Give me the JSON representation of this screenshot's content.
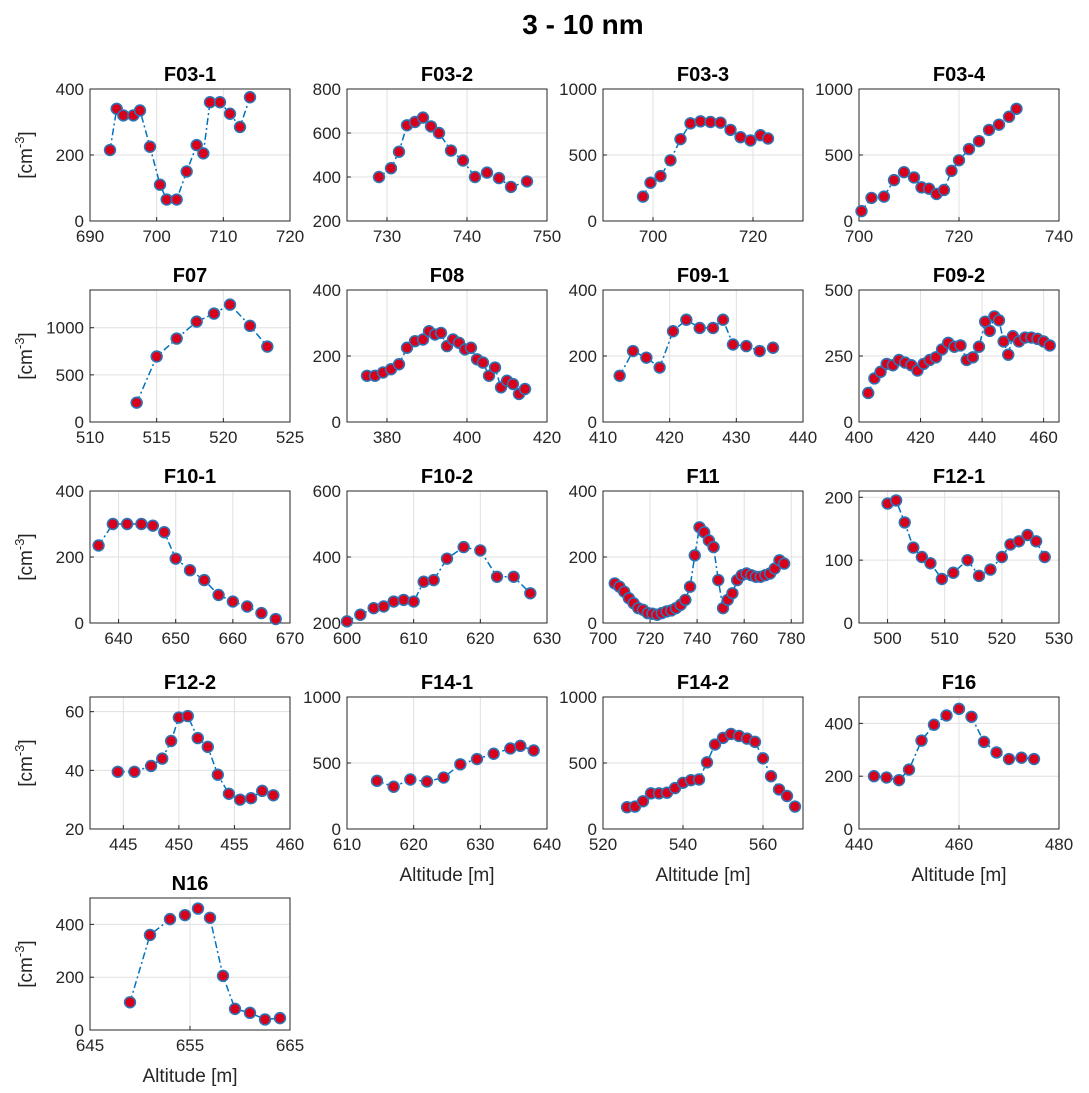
{
  "figure": {
    "title": "3 - 10 nm",
    "colors": {
      "line": "#0072BD",
      "marker_fill": "#D9001B",
      "marker_edge": "#2E74B5",
      "grid": "#E0E0E0",
      "axes": "#262626"
    }
  },
  "chart_data": [
    {
      "type": "line",
      "title": "F03-1",
      "xlabel": "",
      "ylabel": "[cm^-3]",
      "xlim": [
        690,
        720
      ],
      "ylim": [
        0,
        400
      ],
      "xticks": [
        690,
        700,
        710,
        720
      ],
      "yticks": [
        0,
        200,
        400
      ],
      "grid": true,
      "series": [
        {
          "x": [
            693,
            694,
            695,
            696.5,
            697.5,
            699,
            700.5,
            701.5,
            703,
            704.5,
            706,
            707,
            708,
            709.5,
            711,
            712.5,
            714
          ],
          "y": [
            215,
            340,
            320,
            320,
            335,
            225,
            110,
            65,
            65,
            150,
            230,
            205,
            360,
            360,
            325,
            285,
            375
          ]
        }
      ]
    },
    {
      "type": "line",
      "title": "F03-2",
      "xlabel": "",
      "ylabel": "",
      "xlim": [
        725,
        750
      ],
      "ylim": [
        200,
        800
      ],
      "xticks": [
        730,
        740,
        750
      ],
      "yticks": [
        200,
        400,
        600,
        800
      ],
      "grid": true,
      "series": [
        {
          "x": [
            729,
            730.5,
            731.5,
            732.5,
            733.5,
            734.5,
            735.5,
            736.5,
            738,
            739.5,
            741,
            742.5,
            744,
            745.5,
            747.5
          ],
          "y": [
            400,
            440,
            515,
            635,
            650,
            670,
            630,
            600,
            520,
            475,
            400,
            420,
            395,
            355,
            380
          ]
        }
      ]
    },
    {
      "type": "line",
      "title": "F03-3",
      "xlabel": "",
      "ylabel": "",
      "xlim": [
        690,
        730
      ],
      "ylim": [
        0,
        1000
      ],
      "xticks": [
        700,
        720
      ],
      "yticks": [
        0,
        500,
        1000
      ],
      "grid": true,
      "series": [
        {
          "x": [
            698,
            699.5,
            701.5,
            703.5,
            705.5,
            707.5,
            709.5,
            711.5,
            713.5,
            715.5,
            717.5,
            719.5,
            721.5,
            723
          ],
          "y": [
            185,
            290,
            340,
            460,
            620,
            740,
            755,
            750,
            745,
            690,
            635,
            610,
            650,
            625
          ]
        }
      ]
    },
    {
      "type": "line",
      "title": "F03-4",
      "xlabel": "",
      "ylabel": "",
      "xlim": [
        700,
        740
      ],
      "ylim": [
        0,
        1000
      ],
      "xticks": [
        700,
        720,
        740
      ],
      "yticks": [
        0,
        500,
        1000
      ],
      "grid": true,
      "series": [
        {
          "x": [
            700.5,
            702.5,
            705,
            707,
            709,
            711,
            712.5,
            714,
            715.5,
            717,
            718.5,
            720,
            722,
            724,
            726,
            728,
            730,
            731.5
          ],
          "y": [
            75,
            175,
            185,
            310,
            370,
            330,
            255,
            245,
            205,
            235,
            380,
            460,
            545,
            605,
            690,
            730,
            790,
            850
          ]
        }
      ]
    },
    {
      "type": "line",
      "title": "F07",
      "xlabel": "",
      "ylabel": "[cm^-3]",
      "xlim": [
        510,
        525
      ],
      "ylim": [
        0,
        1400
      ],
      "xticks": [
        510,
        515,
        520,
        525
      ],
      "yticks": [
        0,
        500,
        1000
      ],
      "grid": true,
      "series": [
        {
          "x": [
            513.5,
            515,
            516.5,
            518,
            519.3,
            520.5,
            522,
            523.3
          ],
          "y": [
            205,
            695,
            885,
            1065,
            1150,
            1245,
            1020,
            800
          ]
        }
      ]
    },
    {
      "type": "line",
      "title": "F08",
      "xlabel": "",
      "ylabel": "",
      "xlim": [
        370,
        420
      ],
      "ylim": [
        0,
        400
      ],
      "xticks": [
        380,
        400,
        420
      ],
      "yticks": [
        0,
        200,
        400
      ],
      "grid": true,
      "series": [
        {
          "x": [
            375,
            377,
            379,
            381,
            383,
            385,
            387,
            389,
            390.5,
            392,
            393.5,
            395,
            396.5,
            398,
            399.5,
            401,
            402.5,
            404,
            405.5,
            407,
            408.5,
            410,
            411.5,
            413,
            414.5
          ],
          "y": [
            140,
            140,
            150,
            160,
            175,
            225,
            245,
            250,
            275,
            265,
            270,
            230,
            250,
            240,
            220,
            225,
            190,
            180,
            140,
            165,
            105,
            125,
            115,
            85,
            100
          ]
        }
      ]
    },
    {
      "type": "line",
      "title": "F09-1",
      "xlabel": "",
      "ylabel": "",
      "xlim": [
        410,
        440
      ],
      "ylim": [
        0,
        400
      ],
      "xticks": [
        410,
        420,
        430,
        440
      ],
      "yticks": [
        0,
        200,
        400
      ],
      "grid": true,
      "series": [
        {
          "x": [
            412.5,
            414.5,
            416.5,
            418.5,
            420.5,
            422.5,
            424.5,
            426.5,
            428,
            429.5,
            431.5,
            433.5,
            435.5
          ],
          "y": [
            140,
            215,
            195,
            165,
            275,
            310,
            285,
            285,
            310,
            235,
            230,
            215,
            225
          ]
        }
      ]
    },
    {
      "type": "line",
      "title": "F09-2",
      "xlabel": "",
      "ylabel": "",
      "xlim": [
        400,
        465
      ],
      "ylim": [
        0,
        500
      ],
      "xticks": [
        400,
        420,
        440,
        460
      ],
      "yticks": [
        0,
        250,
        500
      ],
      "grid": true,
      "series": [
        {
          "x": [
            403,
            405,
            407,
            409,
            411,
            413,
            415,
            417,
            419,
            421,
            423,
            425,
            427,
            429,
            431,
            433,
            435,
            437,
            439,
            441,
            442.5,
            444,
            445.5,
            447,
            448.5,
            450,
            452,
            454,
            456,
            458,
            460,
            462
          ],
          "y": [
            110,
            165,
            190,
            220,
            215,
            235,
            225,
            215,
            195,
            220,
            235,
            245,
            275,
            300,
            285,
            290,
            235,
            245,
            285,
            380,
            345,
            400,
            385,
            305,
            255,
            325,
            305,
            320,
            320,
            315,
            305,
            290
          ]
        }
      ]
    },
    {
      "type": "line",
      "title": "F10-1",
      "xlabel": "",
      "ylabel": "[cm^-3]",
      "xlim": [
        635,
        670
      ],
      "ylim": [
        0,
        400
      ],
      "xticks": [
        640,
        650,
        660,
        670
      ],
      "yticks": [
        0,
        200,
        400
      ],
      "grid": true,
      "series": [
        {
          "x": [
            636.5,
            639,
            641.5,
            644,
            646,
            648,
            650,
            652.5,
            655,
            657.5,
            660,
            662.5,
            665,
            667.5
          ],
          "y": [
            235,
            300,
            300,
            300,
            295,
            275,
            195,
            160,
            130,
            85,
            65,
            50,
            30,
            12
          ]
        }
      ]
    },
    {
      "type": "line",
      "title": "F10-2",
      "xlabel": "",
      "ylabel": "",
      "xlim": [
        600,
        630
      ],
      "ylim": [
        200,
        600
      ],
      "xticks": [
        600,
        610,
        620,
        630
      ],
      "yticks": [
        200,
        400,
        600
      ],
      "grid": true,
      "series": [
        {
          "x": [
            600,
            602,
            604,
            605.5,
            607,
            608.5,
            610,
            611.5,
            613,
            615,
            617.5,
            620,
            622.5,
            625,
            627.5
          ],
          "y": [
            205,
            225,
            245,
            250,
            265,
            270,
            265,
            325,
            330,
            395,
            430,
            420,
            340,
            340,
            290
          ]
        }
      ]
    },
    {
      "type": "line",
      "title": "F11",
      "xlabel": "",
      "ylabel": "",
      "xlim": [
        700,
        785
      ],
      "ylim": [
        0,
        400
      ],
      "xticks": [
        700,
        720,
        740,
        760,
        780
      ],
      "yticks": [
        0,
        200,
        400
      ],
      "grid": true,
      "series": [
        {
          "x": [
            705,
            707,
            709,
            711,
            713,
            715,
            717,
            719,
            721,
            723,
            725,
            727,
            729,
            731,
            733,
            735,
            737,
            739,
            741,
            743,
            745,
            747,
            749,
            751,
            753,
            755,
            757,
            759,
            761,
            763,
            765,
            767,
            769,
            771,
            773,
            775,
            777
          ],
          "y": [
            120,
            110,
            95,
            75,
            60,
            45,
            40,
            30,
            28,
            25,
            30,
            35,
            38,
            45,
            55,
            70,
            110,
            205,
            290,
            275,
            250,
            230,
            130,
            45,
            70,
            90,
            130,
            145,
            150,
            145,
            140,
            140,
            145,
            150,
            165,
            190,
            180
          ]
        }
      ]
    },
    {
      "type": "line",
      "title": "F12-1",
      "xlabel": "",
      "ylabel": "",
      "xlim": [
        495,
        530
      ],
      "ylim": [
        0,
        210
      ],
      "xticks": [
        500,
        510,
        520,
        530
      ],
      "yticks": [
        0,
        100,
        200
      ],
      "grid": true,
      "series": [
        {
          "x": [
            500,
            501.5,
            503,
            504.5,
            506,
            507.5,
            509.5,
            511.5,
            514,
            516,
            518,
            520,
            521.5,
            523,
            524.5,
            526,
            527.5
          ],
          "y": [
            190,
            195,
            160,
            120,
            105,
            95,
            70,
            80,
            100,
            75,
            85,
            105,
            125,
            130,
            140,
            130,
            105
          ]
        }
      ]
    },
    {
      "type": "line",
      "title": "F12-2",
      "xlabel": "",
      "ylabel": "[cm^-3]",
      "xlim": [
        442,
        460
      ],
      "ylim": [
        20,
        65
      ],
      "xticks": [
        445,
        450,
        455,
        460
      ],
      "yticks": [
        20,
        40,
        60
      ],
      "grid": true,
      "series": [
        {
          "x": [
            444.5,
            446,
            447.5,
            448.5,
            449.3,
            450,
            450.8,
            451.7,
            452.6,
            453.5,
            454.5,
            455.5,
            456.5,
            457.5,
            458.5
          ],
          "y": [
            39.5,
            39.5,
            41.5,
            44,
            50,
            58,
            58.5,
            51,
            48,
            38.5,
            32,
            30,
            30.5,
            33,
            31.5
          ]
        }
      ]
    },
    {
      "type": "line",
      "title": "F14-1",
      "xlabel": "Altitude [m]",
      "ylabel": "",
      "xlim": [
        610,
        640
      ],
      "ylim": [
        0,
        1000
      ],
      "xticks": [
        610,
        620,
        630,
        640
      ],
      "yticks": [
        0,
        500,
        1000
      ],
      "grid": true,
      "series": [
        {
          "x": [
            614.5,
            617,
            619.5,
            622,
            624.5,
            627,
            629.5,
            632,
            634.5,
            636,
            638
          ],
          "y": [
            365,
            320,
            375,
            360,
            390,
            490,
            530,
            570,
            610,
            630,
            595
          ]
        }
      ]
    },
    {
      "type": "line",
      "title": "F14-2",
      "xlabel": "Altitude [m]",
      "ylabel": "",
      "xlim": [
        520,
        570
      ],
      "ylim": [
        0,
        1000
      ],
      "xticks": [
        520,
        540,
        560
      ],
      "yticks": [
        0,
        500,
        1000
      ],
      "grid": true,
      "series": [
        {
          "x": [
            526,
            528,
            530,
            532,
            534,
            536,
            538,
            540,
            542,
            544,
            546,
            548,
            550,
            552,
            554,
            556,
            558,
            560,
            562,
            564,
            566,
            568
          ],
          "y": [
            165,
            170,
            210,
            270,
            270,
            275,
            310,
            350,
            370,
            375,
            505,
            640,
            690,
            720,
            705,
            685,
            660,
            535,
            400,
            300,
            250,
            170
          ]
        }
      ]
    },
    {
      "type": "line",
      "title": "F16",
      "xlabel": "Altitude [m]",
      "ylabel": "",
      "xlim": [
        440,
        480
      ],
      "ylim": [
        0,
        500
      ],
      "xticks": [
        440,
        460,
        480
      ],
      "yticks": [
        0,
        200,
        400
      ],
      "grid": true,
      "series": [
        {
          "x": [
            443,
            445.5,
            448,
            450,
            452.5,
            455,
            457.5,
            460,
            462.5,
            465,
            467.5,
            470,
            472.5,
            475
          ],
          "y": [
            200,
            195,
            185,
            225,
            335,
            395,
            430,
            455,
            425,
            330,
            290,
            265,
            270,
            265
          ]
        }
      ]
    },
    {
      "type": "line",
      "title": "N16",
      "xlabel": "Altitude [m]",
      "ylabel": "[cm^-3]",
      "xlim": [
        645,
        665
      ],
      "ylim": [
        0,
        500
      ],
      "xticks": [
        645,
        655,
        665
      ],
      "yticks": [
        0,
        200,
        400
      ],
      "grid": true,
      "series": [
        {
          "x": [
            649,
            651,
            653,
            654.5,
            655.8,
            657,
            658.3,
            659.5,
            661,
            662.5,
            664
          ],
          "y": [
            105,
            360,
            420,
            435,
            460,
            425,
            205,
            80,
            65,
            40,
            45
          ]
        }
      ]
    }
  ]
}
